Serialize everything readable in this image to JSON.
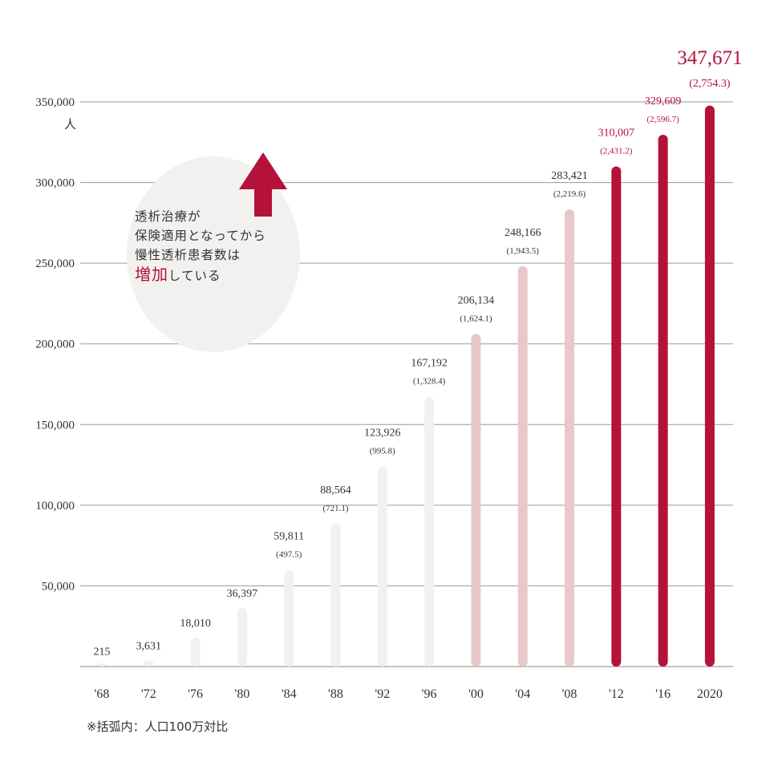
{
  "chart_data": {
    "type": "bar",
    "categories": [
      "'68",
      "'72",
      "'76",
      "'80",
      "'84",
      "'88",
      "'92",
      "'96",
      "'00",
      "'04",
      "'08",
      "'12",
      "'16",
      "2020"
    ],
    "series": [
      {
        "values": [
          215,
          3631,
          18010,
          36397,
          59811,
          88564,
          123926,
          167192,
          206134,
          248166,
          283421,
          310007,
          329609,
          347671
        ],
        "value_labels": [
          "215",
          "3,631",
          "18,010",
          "36,397",
          "59,811",
          "88,564",
          "123,926",
          "167,192",
          "206,134",
          "248,166",
          "283,421",
          "310,007",
          "329,609",
          "347,671"
        ],
        "per_million": [
          null,
          null,
          null,
          null,
          497.5,
          721.1,
          995.8,
          1328.4,
          1624.1,
          1943.5,
          2219.6,
          2431.2,
          2596.7,
          2754.3
        ],
        "per_million_labels": [
          "",
          "",
          "",
          "",
          "(497.5)",
          "(721.1)",
          "(995.8)",
          "(1,328.4)",
          "(1,624.1)",
          "(1,943.5)",
          "(2,219.6)",
          "(2,431.2)",
          "(2,596.7)",
          "(2,754.3)"
        ]
      }
    ],
    "bar_colors": [
      "#f2f1ef",
      "#f2f1ef",
      "#f2f1ef",
      "#f2f1ef",
      "#f2f1ef",
      "#f2f1ef",
      "#f2f1ef",
      "#f2f1ef",
      "#e8c8c9",
      "#e8c8c9",
      "#e8c8c9",
      "#b4123a",
      "#b4123a",
      "#b4123a"
    ],
    "ylim": [
      0,
      350000
    ],
    "yticks": [
      50000,
      100000,
      150000,
      200000,
      250000,
      300000,
      350000
    ],
    "ytick_labels": [
      "50,000",
      "100,000",
      "150,000",
      "200,000",
      "250,000",
      "300,000",
      "350,000"
    ],
    "yunit": "人",
    "grid": true
  },
  "callout": {
    "line1": "透析治療が",
    "line2": "保険適用となってから",
    "line3": "慢性透析患者数は",
    "emphasis": "増加",
    "line4_rest": "している",
    "arrow_color": "#b4123a"
  },
  "note": "※括弧内：人口100万対比"
}
